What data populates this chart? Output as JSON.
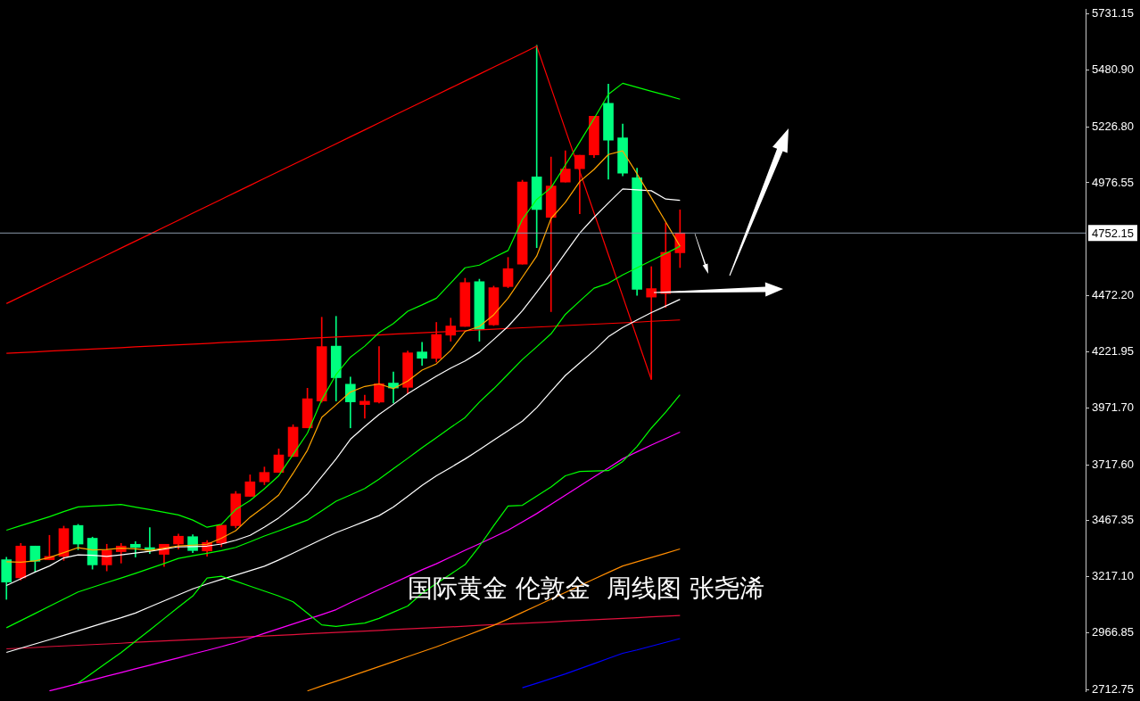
{
  "chart_data": {
    "type": "candlestick",
    "annotations": [
      "国际黄金 伦敦金  周线图 张尧浠"
    ],
    "categories": [
      null,
      null,
      null,
      null,
      null,
      null,
      null,
      null,
      null,
      null,
      null,
      null,
      null,
      null,
      null,
      null,
      null,
      null,
      null,
      null,
      null,
      null,
      null,
      null,
      null,
      null,
      null,
      null,
      null,
      null,
      null,
      null,
      null,
      null,
      null,
      null,
      null,
      null,
      null,
      null,
      null,
      null,
      null,
      null,
      null,
      null,
      null,
      null
    ],
    "ohlc": [
      [
        3293,
        3304,
        3116,
        3193
      ],
      [
        3212,
        3366,
        3202,
        3354
      ],
      [
        3354,
        3354,
        3238,
        3286
      ],
      [
        3293,
        3402,
        3293,
        3308
      ],
      [
        3308,
        3443,
        3290,
        3432
      ],
      [
        3446,
        3451,
        3338,
        3363
      ],
      [
        3389,
        3394,
        3251,
        3270
      ],
      [
        3270,
        3362,
        3243,
        3335
      ],
      [
        3329,
        3366,
        3278,
        3354
      ],
      [
        3362,
        3374,
        3305,
        3348
      ],
      [
        3347,
        3436,
        3321,
        3336
      ],
      [
        3317,
        3362,
        3263,
        3362
      ],
      [
        3363,
        3408,
        3340,
        3398
      ],
      [
        3396,
        3405,
        3325,
        3334
      ],
      [
        3332,
        3379,
        3309,
        3370
      ],
      [
        3367,
        3447,
        3351,
        3447
      ],
      [
        3445,
        3598,
        3435,
        3587
      ],
      [
        3576,
        3672,
        3576,
        3641
      ],
      [
        3641,
        3707,
        3628,
        3683
      ],
      [
        3683,
        3788,
        3683,
        3761
      ],
      [
        3754,
        3896,
        3754,
        3885
      ],
      [
        3882,
        4059,
        3882,
        4012
      ],
      [
        4002,
        4376,
        3996,
        4245
      ],
      [
        4247,
        4380,
        4002,
        4106
      ],
      [
        4077,
        4109,
        3882,
        3998
      ],
      [
        3986,
        4028,
        3925,
        4001
      ],
      [
        3997,
        4245,
        3993,
        4079
      ],
      [
        4082,
        4132,
        3993,
        4060
      ],
      [
        4063,
        4225,
        4034,
        4217
      ],
      [
        4221,
        4264,
        4161,
        4193
      ],
      [
        4192,
        4353,
        4176,
        4299
      ],
      [
        4296,
        4372,
        4269,
        4337
      ],
      [
        4335,
        4550,
        4335,
        4531
      ],
      [
        4535,
        4546,
        4269,
        4322
      ],
      [
        4342,
        4515,
        4339,
        4508
      ],
      [
        4513,
        4643,
        4508,
        4593
      ],
      [
        4613,
        4988,
        4613,
        4980
      ],
      [
        5003,
        5591,
        4687,
        4857
      ],
      [
        4822,
        5092,
        4401,
        4962
      ],
      [
        4980,
        5119,
        4980,
        5038
      ],
      [
        5039,
        5100,
        4838,
        5100
      ],
      [
        5101,
        5274,
        5089,
        5274
      ],
      [
        5332,
        5417,
        4993,
        5167
      ],
      [
        5177,
        5239,
        5008,
        5020
      ],
      [
        4999,
        5042,
        4474,
        4501
      ],
      [
        4466,
        4602,
        4099,
        4504
      ],
      [
        4482,
        4798,
        4420,
        4666
      ],
      [
        4664,
        4856,
        4598,
        4752.15
      ]
    ],
    "colors": [
      "#00ff80",
      "#ff0000",
      "#00ff80",
      "#ff0000",
      "#ff0000",
      "#00ff80",
      "#00ff80",
      "#ff0000",
      "#ff0000",
      "#00ff80",
      "#00ff80",
      "#ff0000",
      "#ff0000",
      "#00ff80",
      "#ff0000",
      "#ff0000",
      "#ff0000",
      "#ff0000",
      "#ff0000",
      "#ff0000",
      "#ff0000",
      "#ff0000",
      "#ff0000",
      "#00ff80",
      "#00ff80",
      "#ff0000",
      "#ff0000",
      "#00ff80",
      "#ff0000",
      "#00ff80",
      "#ff0000",
      "#ff0000",
      "#ff0000",
      "#00ff80",
      "#ff0000",
      "#ff0000",
      "#ff0000",
      "#00ff80",
      "#ff0000",
      "#ff0000",
      "#ff0000",
      "#ff0000",
      "#00ff80",
      "#00ff80",
      "#00ff80",
      "#ff0000",
      "#ff0000",
      "#ff0000"
    ],
    "series": [
      {
        "type": "line",
        "color": "#00ff00",
        "values": [
          3425,
          3445,
          3465,
          3485,
          3508,
          3529,
          3533,
          3536,
          3540,
          3528,
          3517,
          3505,
          3493,
          3470,
          3438,
          3451,
          3517,
          3557,
          3610,
          3668,
          3763,
          3858,
          4007,
          4120,
          4198,
          4247,
          4307,
          4348,
          4403,
          4431,
          4461,
          4529,
          4597,
          4609,
          4643,
          4674,
          4813,
          4902,
          4955,
          5056,
          5158,
          5263,
          5372,
          5421,
          5403,
          5385,
          5368,
          5350
        ]
      },
      {
        "type": "line",
        "color": "#00ff00",
        "values": [
          2989,
          3021,
          3053,
          3085,
          3117,
          3149,
          3170,
          3191,
          3211,
          3232,
          3254,
          3276,
          3299,
          3311,
          3322,
          3334,
          3348,
          3373,
          3399,
          3422,
          3446,
          3470,
          3511,
          3554,
          3582,
          3611,
          3653,
          3700,
          3746,
          3793,
          3838,
          3884,
          3928,
          3997,
          4057,
          4122,
          4187,
          4244,
          4302,
          4389,
          4448,
          4506,
          4528,
          4565,
          4597,
          4629,
          4661,
          4693
        ]
      },
      {
        "type": "line",
        "color": "#00ff00",
        "values": [
          null,
          null,
          null,
          null,
          null,
          2742,
          2787,
          2833,
          2878,
          2929,
          2979,
          3030,
          3081,
          3131,
          3211,
          3219,
          3197,
          3175,
          3153,
          3131,
          3105,
          3054,
          3002,
          2995,
          3003,
          3010,
          3031,
          3059,
          3086,
          3143,
          3187,
          3229,
          3271,
          3353,
          3445,
          3533,
          3536,
          3577,
          3618,
          3668,
          3687,
          3689,
          3691,
          3732,
          3799,
          3881,
          3952,
          4030
        ]
      },
      {
        "type": "line",
        "color": "#ffa500",
        "values": [
          3284,
          3282,
          3288,
          3303,
          3325,
          3347,
          3337,
          3339,
          3345,
          3342,
          3335,
          3345,
          3355,
          3358,
          3362,
          3389,
          3423,
          3483,
          3530,
          3582,
          3679,
          3782,
          3929,
          3985,
          4042,
          4067,
          4078,
          4057,
          4091,
          4140,
          4168,
          4228,
          4313,
          4335,
          4387,
          4461,
          4555,
          4649,
          4817,
          4889,
          4982,
          5036,
          5103,
          5119,
          5017,
          4910,
          4802,
          4693
        ]
      },
      {
        "type": "line",
        "color": "#ffffff",
        "values": [
          3178,
          3208,
          3238,
          3265,
          3301,
          3315,
          3313,
          3308,
          3315,
          3323,
          3331,
          3341,
          3351,
          3352,
          3354,
          3363,
          3380,
          3402,
          3439,
          3480,
          3530,
          3586,
          3664,
          3743,
          3831,
          3888,
          3942,
          3987,
          4034,
          4074,
          4113,
          4149,
          4181,
          4220,
          4277,
          4335,
          4405,
          4488,
          4573,
          4663,
          4752,
          4822,
          4886,
          4949,
          4945,
          4941,
          4904,
          4898
        ]
      },
      {
        "type": "line",
        "color": "#ffffff",
        "values": [
          2879,
          2898,
          2917,
          2936,
          2955,
          2975,
          2995,
          3015,
          3034,
          3055,
          3082,
          3109,
          3136,
          3163,
          3185,
          3205,
          3224,
          3244,
          3264,
          3292,
          3322,
          3353,
          3384,
          3414,
          3439,
          3464,
          3490,
          3528,
          3576,
          3625,
          3668,
          3705,
          3743,
          3784,
          3827,
          3869,
          3912,
          3972,
          4045,
          4116,
          4172,
          4227,
          4289,
          4330,
          4364,
          4397,
          4426,
          4456
        ]
      },
      {
        "type": "line",
        "color": "#ff00ff",
        "values": [
          null,
          null,
          null,
          2707,
          2723,
          2740,
          2756,
          2773,
          2789,
          2806,
          2822,
          2839,
          2855,
          2872,
          2888,
          2905,
          2922,
          2943,
          2964,
          2985,
          3006,
          3027,
          3048,
          3070,
          3101,
          3130,
          3160,
          3189,
          3218,
          3248,
          3275,
          3305,
          3335,
          3364,
          3394,
          3425,
          3462,
          3499,
          3540,
          3581,
          3622,
          3663,
          3703,
          3744,
          3775,
          3805,
          3834,
          3863
        ]
      },
      {
        "type": "line",
        "color": "#ff8c00",
        "values": [
          null,
          null,
          null,
          null,
          null,
          null,
          null,
          null,
          null,
          null,
          null,
          null,
          null,
          null,
          null,
          null,
          null,
          null,
          null,
          null,
          null,
          2707,
          2729,
          2750,
          2772,
          2794,
          2816,
          2838,
          2860,
          2882,
          2904,
          2928,
          2952,
          2976,
          3000,
          3028,
          3058,
          3087,
          3117,
          3147,
          3177,
          3207,
          3236,
          3265,
          3284,
          3303,
          3322,
          3341
        ]
      },
      {
        "type": "line",
        "color": "#0000ff",
        "values": [
          null,
          null,
          null,
          null,
          null,
          null,
          null,
          null,
          null,
          null,
          null,
          null,
          null,
          null,
          null,
          null,
          null,
          null,
          null,
          null,
          null,
          null,
          null,
          null,
          null,
          null,
          null,
          null,
          null,
          null,
          null,
          null,
          null,
          null,
          null,
          null,
          2721,
          2741,
          2762,
          2783,
          2806,
          2829,
          2852,
          2875,
          2890,
          2907,
          2924,
          2941
        ]
      },
      {
        "type": "line",
        "color": "#ff0000",
        "values": [
          4437,
          4468,
          4499,
          4530,
          4561,
          4592,
          4623,
          4654,
          4685,
          4716,
          4747,
          4778,
          4809,
          4841,
          4872,
          4903,
          4934,
          4965,
          4996,
          5027,
          5058,
          5089,
          5120,
          5151,
          5182,
          5213,
          5244,
          5276,
          5307,
          5338,
          5369,
          5400,
          5431,
          5462,
          5493,
          5524,
          5555,
          5587,
          5401,
          5214,
          5028,
          4842,
          4656,
          4470,
          4283,
          4097,
          null,
          null
        ]
      },
      {
        "type": "line",
        "color": "#ff0000",
        "values": [
          4215,
          4218,
          4221,
          4225,
          4228,
          4231,
          4234,
          4237,
          4240,
          4244,
          4247,
          4250,
          4253,
          4256,
          4259,
          4263,
          4266,
          4269,
          4272,
          4275,
          4278,
          4282,
          4285,
          4288,
          4291,
          4294,
          4297,
          4301,
          4304,
          4307,
          4310,
          4313,
          4316,
          4320,
          4323,
          4326,
          4329,
          4332,
          4335,
          4339,
          4342,
          4345,
          4348,
          4351,
          4354,
          4358,
          4361,
          4364
        ]
      },
      {
        "type": "line",
        "color": "#e0103c",
        "values": [
          2895,
          2898,
          2901,
          2905,
          2908,
          2911,
          2914,
          2917,
          2920,
          2924,
          2927,
          2930,
          2933,
          2936,
          2939,
          2943,
          2946,
          2949,
          2952,
          2955,
          2958,
          2962,
          2965,
          2968,
          2971,
          2974,
          2977,
          2981,
          2984,
          2987,
          2990,
          2993,
          2996,
          3000,
          3003,
          3006,
          3009,
          3012,
          3015,
          3019,
          3022,
          3025,
          3028,
          3031,
          3034,
          3038,
          3041,
          3044
        ]
      }
    ],
    "ref_lines": [
      {
        "axis": "y",
        "value": 4752.15,
        "label": "4752.15",
        "color": "#8c9bab"
      }
    ],
    "ylim": [
      2705,
      5750
    ],
    "yticks": [
      {
        "value": 5731.15,
        "label": "5731.15"
      },
      {
        "value": 5480.9,
        "label": "5480.90"
      },
      {
        "value": 5226.8,
        "label": "5226.80"
      },
      {
        "value": 4976.55,
        "label": "4976.55"
      },
      {
        "value": 4472.2,
        "label": "4472.20"
      },
      {
        "value": 4221.95,
        "label": "4221.95"
      },
      {
        "value": 3971.7,
        "label": "3971.70"
      },
      {
        "value": 3717.6,
        "label": "3717.60"
      },
      {
        "value": 3467.35,
        "label": "3467.35"
      },
      {
        "value": 3217.1,
        "label": "3217.10"
      },
      {
        "value": 2966.85,
        "label": "2966.85"
      },
      {
        "value": 2712.75,
        "label": "2712.75"
      }
    ],
    "tick_labels": "y",
    "marker": "none",
    "grid": false
  }
}
